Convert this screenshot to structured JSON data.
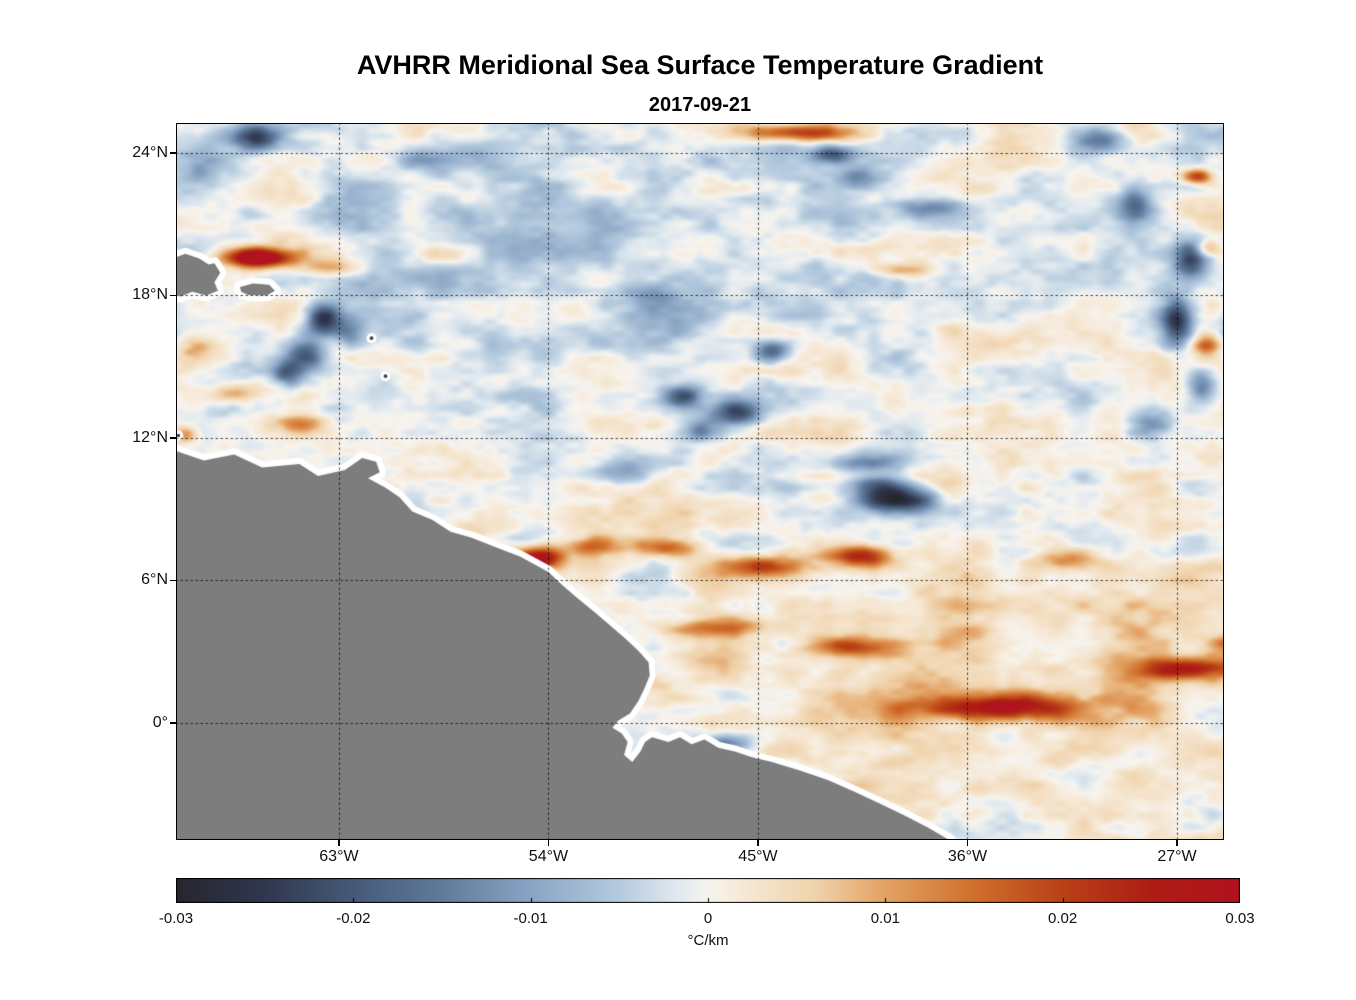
{
  "figure": {
    "title": "AVHRR Meridional Sea Surface Temperature Gradient",
    "subtitle": "2017-09-21",
    "background": "#ffffff"
  },
  "axes": {
    "lon_range": [
      -70.0,
      -24.98
    ],
    "lat_range": [
      -4.93,
      25.26
    ],
    "x_ticks": [
      {
        "lon": -63,
        "label": "63°W"
      },
      {
        "lon": -54,
        "label": "54°W"
      },
      {
        "lon": -45,
        "label": "45°W"
      },
      {
        "lon": -36,
        "label": "36°W"
      },
      {
        "lon": -27,
        "label": "27°W"
      }
    ],
    "y_ticks": [
      {
        "lat": 24,
        "label": "24°N"
      },
      {
        "lat": 18,
        "label": "18°N"
      },
      {
        "lat": 12,
        "label": "12°N"
      },
      {
        "lat": 6,
        "label": "6°N"
      },
      {
        "lat": 0,
        "label": "0°"
      }
    ],
    "grid_style": "dotted",
    "frame_color": "#000000"
  },
  "colorbar": {
    "label": "°C/km",
    "min": -0.03,
    "max": 0.03,
    "ticks": [
      {
        "value": -0.03,
        "label": "-0.03"
      },
      {
        "value": -0.02,
        "label": "-0.02"
      },
      {
        "value": -0.01,
        "label": "-0.01"
      },
      {
        "value": 0,
        "label": "0"
      },
      {
        "value": 0.01,
        "label": "0.01"
      },
      {
        "value": 0.02,
        "label": "0.02"
      },
      {
        "value": 0.03,
        "label": "0.03"
      }
    ],
    "stops": [
      {
        "t": 0.0,
        "c": "#26262e"
      },
      {
        "t": 0.08,
        "c": "#30364d"
      },
      {
        "t": 0.167,
        "c": "#465a78"
      },
      {
        "t": 0.25,
        "c": "#607a9b"
      },
      {
        "t": 0.333,
        "c": "#89a4c4"
      },
      {
        "t": 0.42,
        "c": "#b7ccdf"
      },
      {
        "t": 0.47,
        "c": "#e0e9ef"
      },
      {
        "t": 0.5,
        "c": "#f7f4ef"
      },
      {
        "t": 0.53,
        "c": "#f6ead9"
      },
      {
        "t": 0.6,
        "c": "#f0d3ac"
      },
      {
        "t": 0.667,
        "c": "#e3a263"
      },
      {
        "t": 0.75,
        "c": "#d06f2c"
      },
      {
        "t": 0.833,
        "c": "#b94117"
      },
      {
        "t": 0.92,
        "c": "#ad1c14"
      },
      {
        "t": 1.0,
        "c": "#b2121f"
      }
    ]
  },
  "chart_data": {
    "type": "heatmap",
    "title": "AVHRR Meridional Sea Surface Temperature Gradient",
    "date": "2017-09-21",
    "units": "°C/km",
    "value_range": [
      -0.03,
      0.03
    ],
    "lon_range": [
      -70.0,
      -24.98
    ],
    "lat_range": [
      -4.93,
      25.26
    ],
    "colormap": "diverging dark-blue / white / dark-red",
    "legend_position": "horizontal colorbar below map",
    "features_format": [
      "lon_deg_east",
      "lat_deg_north",
      "amplitude_C_per_km",
      "sigma_lon_deg",
      "sigma_lat_deg"
    ],
    "features": [
      [
        -66.5,
        19.6,
        0.04,
        1.0,
        0.28
      ],
      [
        -63.2,
        19.15,
        0.013,
        0.9,
        0.3
      ],
      [
        -69.1,
        15.6,
        0.012,
        0.6,
        0.45
      ],
      [
        -67.3,
        13.95,
        0.011,
        0.7,
        0.3
      ],
      [
        -64.7,
        12.6,
        0.013,
        0.9,
        0.28
      ],
      [
        -63.7,
        17.0,
        -0.024,
        0.5,
        0.45
      ],
      [
        -64.4,
        15.5,
        -0.021,
        0.55,
        0.5
      ],
      [
        -65.2,
        14.7,
        -0.016,
        0.45,
        0.4
      ],
      [
        -62.5,
        16.45,
        -0.013,
        0.5,
        0.35
      ],
      [
        -66.55,
        24.65,
        -0.022,
        0.8,
        0.4
      ],
      [
        -68.75,
        23.7,
        -0.011,
        1.2,
        0.8
      ],
      [
        -59.5,
        23.8,
        -0.009,
        1.0,
        0.45
      ],
      [
        -43.6,
        24.85,
        0.022,
        1.7,
        0.25
      ],
      [
        -41.8,
        24.0,
        -0.021,
        0.65,
        0.3
      ],
      [
        -40.5,
        23.0,
        -0.012,
        0.6,
        0.3
      ],
      [
        -37.6,
        21.75,
        -0.012,
        1.1,
        0.3
      ],
      [
        -48.2,
        13.75,
        -0.019,
        0.6,
        0.35
      ],
      [
        -45.9,
        13.05,
        -0.023,
        0.75,
        0.4
      ],
      [
        -47.5,
        12.25,
        -0.013,
        0.6,
        0.3
      ],
      [
        -44.3,
        15.6,
        -0.018,
        0.55,
        0.33
      ],
      [
        -40.8,
        10.95,
        -0.015,
        1.2,
        0.28
      ],
      [
        -39.0,
        9.4,
        -0.028,
        1.1,
        0.38
      ],
      [
        -40.0,
        10.0,
        -0.016,
        0.8,
        0.3
      ],
      [
        -54.5,
        6.9,
        0.035,
        0.8,
        0.35
      ],
      [
        -52.2,
        7.4,
        0.016,
        0.8,
        0.3
      ],
      [
        -49.0,
        7.4,
        0.014,
        1.1,
        0.27
      ],
      [
        -44.8,
        6.6,
        0.019,
        1.5,
        0.3
      ],
      [
        -40.5,
        7.0,
        0.021,
        1.0,
        0.3
      ],
      [
        -46.6,
        4.0,
        0.013,
        1.5,
        0.27
      ],
      [
        -41.0,
        3.2,
        0.017,
        1.3,
        0.3
      ],
      [
        -34.6,
        0.65,
        0.027,
        2.6,
        0.38
      ],
      [
        -26.4,
        2.3,
        0.025,
        1.7,
        0.35
      ],
      [
        -23.9,
        3.3,
        0.02,
        1.0,
        0.35
      ],
      [
        -31.6,
        6.8,
        0.013,
        1.0,
        0.3
      ],
      [
        -28.8,
        21.8,
        -0.019,
        0.5,
        0.55
      ],
      [
        -26.4,
        19.6,
        -0.021,
        0.5,
        0.6
      ],
      [
        -27.0,
        16.9,
        -0.025,
        0.5,
        0.75
      ],
      [
        -25.9,
        14.2,
        -0.017,
        0.5,
        0.5
      ],
      [
        -28.1,
        12.55,
        -0.012,
        0.6,
        0.4
      ],
      [
        -26.1,
        23.0,
        0.021,
        0.45,
        0.22
      ],
      [
        -25.7,
        20.0,
        0.013,
        0.4,
        0.25
      ],
      [
        -25.8,
        15.9,
        0.014,
        0.4,
        0.3
      ],
      [
        -46.5,
        -0.9,
        -0.015,
        1.0,
        0.3
      ],
      [
        -43.5,
        -2.2,
        -0.014,
        1.0,
        0.3
      ],
      [
        -40.0,
        -3.75,
        -0.013,
        0.9,
        0.3
      ],
      [
        -50.6,
        10.55,
        -0.011,
        0.9,
        0.4
      ],
      [
        -69.55,
        12.15,
        0.014,
        0.35,
        0.25
      ],
      [
        -38.7,
        19.05,
        0.011,
        0.9,
        0.2
      ],
      [
        -49.4,
        17.7,
        -0.008,
        1.3,
        0.7
      ],
      [
        -55.2,
        15.9,
        -0.007,
        1.2,
        0.6
      ],
      [
        -58.45,
        19.7,
        0.008,
        1.0,
        0.3
      ],
      [
        -30.3,
        24.6,
        -0.013,
        0.8,
        0.35
      ],
      [
        -23.6,
        23.7,
        -0.015,
        0.6,
        0.5
      ],
      [
        -24.2,
        16.5,
        -0.018,
        0.5,
        0.9
      ],
      [
        -35.0,
        2.5,
        0.005,
        9.0,
        3.5
      ],
      [
        -53.0,
        20.0,
        -0.004,
        9.0,
        4.0
      ]
    ],
    "background_noise": {
      "amplitude": 0.0095,
      "octaves": [
        [
          2.6,
          1.25,
          0.9
        ],
        [
          1.15,
          0.55,
          0.55
        ],
        [
          0.5,
          0.26,
          0.28
        ]
      ]
    },
    "geography": {
      "land_color": "#7d7d7d",
      "coast_gap_color": "#ffffff",
      "polygons": {
        "south_america": [
          [
            -70.3,
            11.45
          ],
          [
            -70.0,
            11.45
          ],
          [
            -68.8,
            11.05
          ],
          [
            -67.5,
            11.3
          ],
          [
            -66.3,
            10.75
          ],
          [
            -64.7,
            10.9
          ],
          [
            -63.9,
            10.4
          ],
          [
            -62.75,
            10.65
          ],
          [
            -62.0,
            11.15
          ],
          [
            -61.4,
            11.0
          ],
          [
            -61.25,
            10.55
          ],
          [
            -61.75,
            10.3
          ],
          [
            -61.0,
            9.9
          ],
          [
            -60.4,
            9.5
          ],
          [
            -59.85,
            8.9
          ],
          [
            -59.0,
            8.55
          ],
          [
            -58.2,
            8.05
          ],
          [
            -57.3,
            7.8
          ],
          [
            -56.15,
            7.35
          ],
          [
            -55.2,
            7.0
          ],
          [
            -54.0,
            6.35
          ],
          [
            -53.4,
            5.8
          ],
          [
            -52.75,
            5.25
          ],
          [
            -52.0,
            4.65
          ],
          [
            -51.35,
            4.1
          ],
          [
            -50.7,
            3.55
          ],
          [
            -50.15,
            3.05
          ],
          [
            -49.7,
            2.55
          ],
          [
            -49.65,
            2.0
          ],
          [
            -49.9,
            1.4
          ],
          [
            -50.15,
            0.9
          ],
          [
            -50.5,
            0.4
          ],
          [
            -51.0,
            0.1
          ],
          [
            -51.25,
            -0.2
          ],
          [
            -50.85,
            -0.45
          ],
          [
            -50.6,
            -0.8
          ],
          [
            -50.75,
            -1.35
          ],
          [
            -50.4,
            -1.65
          ],
          [
            -50.05,
            -1.2
          ],
          [
            -49.85,
            -0.8
          ],
          [
            -49.55,
            -0.6
          ],
          [
            -48.85,
            -0.8
          ],
          [
            -48.35,
            -0.6
          ],
          [
            -47.85,
            -0.9
          ],
          [
            -47.3,
            -0.7
          ],
          [
            -46.7,
            -1.05
          ],
          [
            -46.0,
            -1.2
          ],
          [
            -45.25,
            -1.45
          ],
          [
            -44.4,
            -1.65
          ],
          [
            -43.2,
            -2.0
          ],
          [
            -42.0,
            -2.4
          ],
          [
            -40.85,
            -2.9
          ],
          [
            -39.75,
            -3.4
          ],
          [
            -38.7,
            -3.9
          ],
          [
            -37.7,
            -4.4
          ],
          [
            -36.75,
            -4.95
          ],
          [
            -36.6,
            -5.4
          ],
          [
            -70.3,
            -5.4
          ]
        ],
        "hispaniola": [
          [
            -70.3,
            19.5
          ],
          [
            -69.6,
            19.75
          ],
          [
            -69.0,
            19.55
          ],
          [
            -68.6,
            19.3
          ],
          [
            -68.35,
            19.35
          ],
          [
            -68.1,
            18.95
          ],
          [
            -68.35,
            18.55
          ],
          [
            -68.2,
            18.2
          ],
          [
            -68.7,
            18.0
          ],
          [
            -69.3,
            18.15
          ],
          [
            -69.8,
            17.95
          ],
          [
            -70.3,
            18.15
          ]
        ],
        "puerto_rico": [
          [
            -67.25,
            18.35
          ],
          [
            -66.7,
            18.5
          ],
          [
            -66.0,
            18.45
          ],
          [
            -65.75,
            18.2
          ],
          [
            -66.1,
            18.0
          ],
          [
            -66.9,
            18.02
          ],
          [
            -67.2,
            18.15
          ]
        ]
      },
      "islets": [
        [
          -61.6,
          16.2
        ],
        [
          -61.0,
          14.6
        ],
        [
          -69.9,
          12.1
        ]
      ]
    }
  }
}
